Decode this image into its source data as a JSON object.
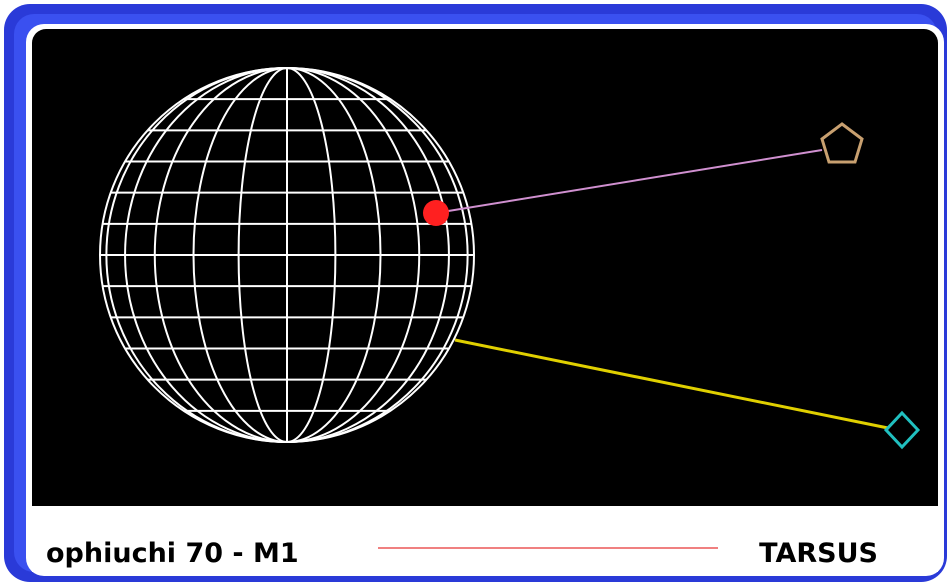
{
  "footer": {
    "left": "ophiuchi 70 - M1",
    "right": "TARSUS"
  }
}
